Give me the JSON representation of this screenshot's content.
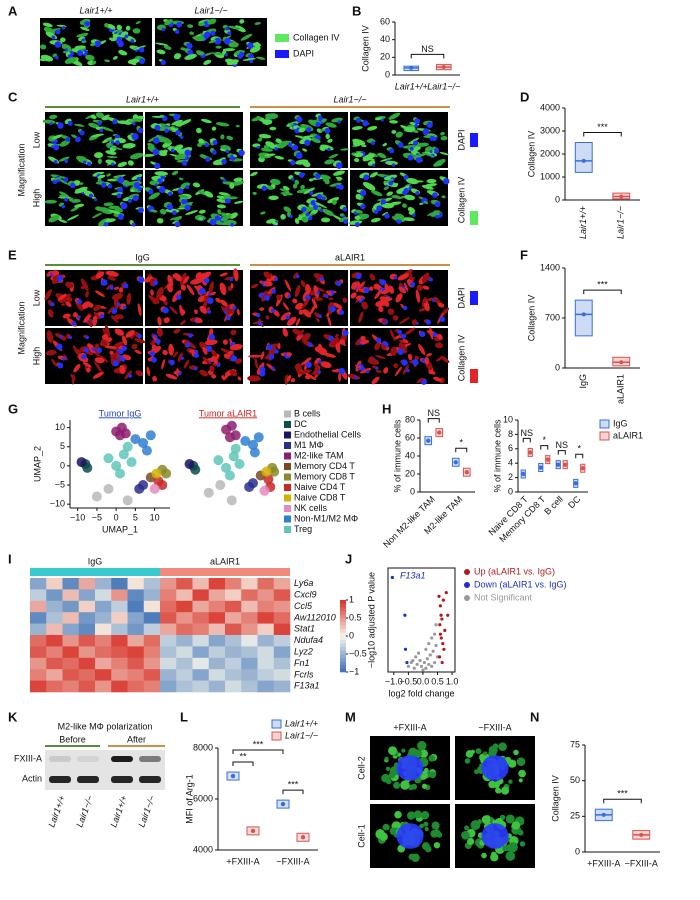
{
  "panel_labels": [
    "A",
    "B",
    "C",
    "D",
    "E",
    "F",
    "G",
    "H",
    "I",
    "J",
    "K",
    "L",
    "M",
    "N"
  ],
  "A": {
    "images": [
      "Lair1+/+",
      "Lair1−/−"
    ],
    "legend": [
      {
        "label": "Collagen IV",
        "color": "#5fe85f"
      },
      {
        "label": "DAPI",
        "color": "#1a1aff"
      }
    ]
  },
  "C": {
    "groups": [
      "Lair1+/+",
      "Lair1−/−"
    ],
    "rows": [
      "Low",
      "High"
    ],
    "axis": "Magnification",
    "legend": [
      {
        "label": "DAPI",
        "color": "#1a1aff"
      },
      {
        "label": "Collagen IV",
        "color": "#5fe85f"
      }
    ]
  },
  "E": {
    "groups": [
      "IgG",
      "aLAIR1"
    ],
    "rows": [
      "Low",
      "High"
    ],
    "axis": "Magnification",
    "legend": [
      {
        "label": "DAPI",
        "color": "#1a1aff"
      },
      {
        "label": "Collagen IV",
        "color": "#e0242a"
      }
    ]
  },
  "K": {
    "title": "M2-like MΦ polarization",
    "stages": [
      "Before",
      "After"
    ],
    "proteins": [
      "FXIII-A",
      "Actin"
    ],
    "lanes": [
      "Lair1+/+",
      "Lair1−/−",
      "Lair1+/+",
      "Lair1−/−"
    ]
  },
  "M": {
    "columns": [
      "+FXIII-A",
      "−FXIII-A"
    ],
    "rows": [
      "Cell-2",
      "Cell-1"
    ]
  },
  "chart_data": [
    {
      "type": "box",
      "ylabel": "Collagen IV",
      "categories": [
        "Lair1+/+",
        "Lair1−/−"
      ],
      "values": [
        8,
        9
      ],
      "q1": [
        5,
        6
      ],
      "q3": [
        10,
        12
      ],
      "colors": [
        "#3a6fd8",
        "#d9534f"
      ],
      "ylim": [
        0,
        60
      ],
      "yticks": [
        0,
        20,
        40,
        60
      ],
      "annotation": "NS"
    },
    {
      "type": "box",
      "ylabel": "Collagen IV",
      "categories": [
        "Lair1+/+",
        "Lair1−/−"
      ],
      "values": [
        1700,
        150
      ],
      "q1": [
        1200,
        50
      ],
      "q3": [
        2500,
        300
      ],
      "colors": [
        "#3a6fd8",
        "#d9534f"
      ],
      "ylim": [
        0,
        4000
      ],
      "yticks": [
        0,
        1000,
        2000,
        3000,
        4000
      ],
      "annotation": "***"
    },
    {
      "type": "box",
      "ylabel": "Collagen IV",
      "categories": [
        "IgG",
        "aLAIR1"
      ],
      "values": [
        750,
        80
      ],
      "q1": [
        450,
        30
      ],
      "q3": [
        950,
        150
      ],
      "colors": [
        "#3a6fd8",
        "#d9534f"
      ],
      "ylim": [
        0,
        1400
      ],
      "yticks": [
        0,
        700,
        1400
      ],
      "annotation": "***"
    },
    {
      "type": "umap",
      "xlabel": "UMAP_1",
      "ylabel": "UMAP_2",
      "xlim": [
        -12,
        14
      ],
      "ylim": [
        -11,
        12
      ],
      "xticks": [
        {
          "value": -10,
          "label": "−10"
        },
        {
          "value": -5,
          "label": "−5"
        },
        0,
        5,
        10
      ],
      "yticks": [
        {
          "value": -10,
          "label": "−10"
        },
        {
          "value": -5,
          "label": "−5"
        },
        0,
        5,
        10
      ],
      "names": [
        "B cells",
        "DC",
        "Endothelial Cells",
        "M1 MΦ",
        "M2-like TAM",
        "Memory CD4 T",
        "Memory CD8 T",
        "Naive CD4 T",
        "Naive CD8 T",
        "NK cells",
        "Non-M1/M2 MΦ",
        "Treg"
      ],
      "colors": [
        "#b8b8b8",
        "#0e4d4d",
        "#1b1464",
        "#2a2f8c",
        "#8e1f6e",
        "#7a4a1c",
        "#8a8a2a",
        "#c62828",
        "#d4b000",
        "#e58ac0",
        "#2f7fd1",
        "#5fc7b8"
      ],
      "panels": [
        {
          "title": "Tumor IgG",
          "color": "#2040d0",
          "series": [
            {
              "x": [
                -5,
                3,
                -2
              ],
              "y": [
                -8,
                -9,
                -6
              ]
            },
            {
              "x": [
                -8,
                -7.5
              ],
              "y": [
                0.5,
                -0.5
              ]
            },
            {
              "x": [
                -9
              ],
              "y": [
                1
              ]
            },
            {
              "x": [
                6,
                7
              ],
              "y": [
                -6,
                -5
              ]
            },
            {
              "x": [
                0,
                1.5,
                2.5,
                1
              ],
              "y": [
                9,
                10,
                8.5,
                8
              ]
            },
            {
              "x": [
                9
              ],
              "y": [
                -3
              ]
            },
            {
              "x": [
                12,
                13
              ],
              "y": [
                -1,
                -2
              ]
            },
            {
              "x": [
                11,
                12
              ],
              "y": [
                -4,
                -5
              ]
            },
            {
              "x": [
                10.5
              ],
              "y": [
                -2
              ]
            },
            {
              "x": [
                10
              ],
              "y": [
                -6
              ]
            },
            {
              "x": [
                5,
                7,
                9,
                8
              ],
              "y": [
                7,
                6,
                8,
                4
              ]
            },
            {
              "x": [
                -2,
                0,
                2,
                4,
                1,
                3
              ],
              "y": [
                2,
                0,
                3,
                1,
                -2,
                5
              ]
            }
          ]
        },
        {
          "title": "Tumor aLAIR1",
          "color": "#d02020",
          "series": [
            {
              "x": [
                -4,
                2,
                -1
              ],
              "y": [
                -7,
                -9,
                -5
              ]
            },
            {
              "x": [
                -8,
                -7.5
              ],
              "y": [
                0,
                -1
              ]
            },
            {
              "x": [
                -9
              ],
              "y": [
                0.5
              ]
            },
            {
              "x": [
                6.5,
                7.5
              ],
              "y": [
                -5.5,
                -4.5
              ]
            },
            {
              "x": [
                0.5,
                2,
                3,
                1.5
              ],
              "y": [
                9.5,
                10.5,
                8,
                7.5
              ]
            },
            {
              "x": [
                9.5
              ],
              "y": [
                -2.5
              ]
            },
            {
              "x": [
                12.5,
                13
              ],
              "y": [
                -0.5,
                -1.5
              ]
            },
            {
              "x": [
                11.5,
                12
              ],
              "y": [
                -3.5,
                -5.5
              ]
            },
            {
              "x": [
                11
              ],
              "y": [
                -1.5
              ]
            },
            {
              "x": [
                10.5
              ],
              "y": [
                -6.5
              ]
            },
            {
              "x": [
                5.5,
                7.5,
                9,
                8
              ],
              "y": [
                6.5,
                5.5,
                7.5,
                3.5
              ]
            },
            {
              "x": [
                -1.5,
                0.5,
                2.5,
                4,
                1.5,
                3
              ],
              "y": [
                1.5,
                -0.5,
                2.5,
                0.5,
                -2.5,
                4.5
              ]
            }
          ]
        }
      ]
    },
    {
      "type": "dot",
      "ylabel": "% of immune cells",
      "series": [
        {
          "name": "IgG",
          "color": "#3a6fd8"
        },
        {
          "name": "aLAIR1",
          "color": "#d9534f"
        }
      ],
      "panels": [
        {
          "categories": [
            "Non M2-like TAM",
            "M2-like TAM"
          ],
          "ylim": [
            0,
            80
          ],
          "yticks": [
            0,
            20,
            40,
            60,
            80
          ],
          "values": [
            [
              57,
              33
            ],
            [
              66,
              22
            ]
          ],
          "annotations": [
            "NS",
            "*"
          ]
        },
        {
          "categories": [
            "Naive CD8 T",
            "Memory CD8 T",
            "B cell",
            "DC"
          ],
          "ylim": [
            0,
            10
          ],
          "yticks": [
            0,
            2,
            4,
            6,
            8,
            10
          ],
          "values": [
            [
              2.5,
              3.4,
              3.8,
              1.2
            ],
            [
              5.5,
              4.5,
              3.8,
              3.3
            ]
          ],
          "annotations": [
            "NS",
            "*",
            "NS",
            "*"
          ]
        }
      ]
    },
    {
      "type": "heatmap",
      "groups": [
        {
          "name": "IgG",
          "color": "#3cc8d0"
        },
        {
          "name": "aLAIR1",
          "color": "#f08a7a"
        }
      ],
      "rows": [
        "Ly6a",
        "Cxcl9",
        "Ccl5",
        "Aw112010",
        "Stat1",
        "Ndufa4",
        "Lyz2",
        "Fn1",
        "Fcrls",
        "F13a1"
      ],
      "values": [
        [
          -0.6,
          0.2,
          -0.8,
          0.4,
          -0.5,
          -0.9,
          0.1,
          -0.4,
          0.5,
          0.8,
          0.3,
          0.9,
          0.6,
          0.2,
          0.7,
          0.4
        ],
        [
          -0.3,
          -0.7,
          0.3,
          -0.6,
          -0.2,
          0.5,
          -0.8,
          -0.5,
          0.6,
          0.3,
          0.9,
          0.4,
          0.2,
          0.7,
          0.5,
          0.8
        ],
        [
          0.4,
          -0.5,
          -0.7,
          0.2,
          -0.6,
          -0.3,
          -0.9,
          0.1,
          0.7,
          0.9,
          0.4,
          0.6,
          0.8,
          0.3,
          0.6,
          0.5
        ],
        [
          -0.8,
          -0.4,
          0.3,
          -0.7,
          -0.5,
          0.2,
          -0.6,
          -0.9,
          0.8,
          0.5,
          0.7,
          0.9,
          0.4,
          0.6,
          0.9,
          0.7
        ],
        [
          -0.5,
          0.3,
          -0.6,
          -0.8,
          0.1,
          -0.4,
          -0.7,
          -0.3,
          0.4,
          0.7,
          0.6,
          0.3,
          0.8,
          0.5,
          0.2,
          0.9
        ],
        [
          0.7,
          0.9,
          0.5,
          0.8,
          0.6,
          0.9,
          0.4,
          0.7,
          -0.3,
          -0.5,
          -0.2,
          -0.6,
          -0.4,
          -0.1,
          -0.5,
          -0.3
        ],
        [
          0.8,
          0.6,
          0.9,
          0.5,
          0.7,
          0.8,
          0.9,
          0.6,
          -0.4,
          -0.2,
          -0.6,
          -0.3,
          -0.5,
          -0.4,
          -0.2,
          -0.6
        ],
        [
          0.5,
          0.8,
          0.7,
          0.9,
          0.4,
          0.6,
          0.8,
          0.5,
          -0.2,
          -0.4,
          -0.1,
          -0.5,
          -0.3,
          -0.6,
          -0.2,
          -0.4
        ],
        [
          0.6,
          0.4,
          0.8,
          0.7,
          0.9,
          0.5,
          0.6,
          0.8,
          -0.5,
          -0.3,
          -0.6,
          -0.2,
          -0.4,
          -0.5,
          -0.3,
          -0.2
        ],
        [
          0.9,
          0.7,
          0.6,
          0.8,
          0.5,
          0.9,
          0.7,
          0.6,
          -0.6,
          -0.4,
          -0.3,
          -0.5,
          -0.2,
          -0.4,
          -0.6,
          -0.5
        ]
      ],
      "zlim": [
        -1,
        1
      ],
      "zticks": [
        1,
        0.5,
        0,
        {
          "value": -0.5,
          "label": "−0.5"
        },
        {
          "value": -1,
          "label": "−1"
        }
      ]
    },
    {
      "type": "volcano",
      "xlabel": "log2 fold change",
      "ylabel": "−log10 adjusted P value",
      "annotation": "F13a1",
      "xlim": [
        -1.2,
        1.1
      ],
      "ylim": [
        0,
        55
      ],
      "xticks": [
        {
          "value": -1,
          "label": "−1.0"
        },
        {
          "value": -0.5,
          "label": "−0.5"
        },
        {
          "value": 0,
          "label": "0.0"
        },
        0.5,
        {
          "value": 1,
          "label": "1.0"
        }
      ],
      "series": [
        {
          "name": "Up (aLAIR1 vs. IgG)",
          "color": "#b01c1c",
          "x": [
            0.55,
            0.6,
            0.62,
            0.65,
            0.7,
            0.58,
            0.75,
            0.8,
            0.63,
            0.68,
            0.72,
            0.57,
            0.85,
            0.66,
            0.6
          ],
          "y": [
            40,
            35,
            30,
            28,
            38,
            25,
            22,
            42,
            18,
            15,
            12,
            8,
            30,
            5,
            20
          ]
        },
        {
          "name": "Down (aLAIR1 vs. IgG)",
          "color": "#1c2fc8",
          "x": [
            -1.05,
            -0.62,
            -0.6,
            -0.55
          ],
          "y": [
            50,
            30,
            12,
            5
          ]
        },
        {
          "name": "Not Significant",
          "color": "#9a9a9a",
          "x": [
            -0.5,
            -0.4,
            -0.3,
            -0.25,
            -0.2,
            -0.15,
            -0.1,
            -0.05,
            0,
            0.05,
            0.1,
            0.15,
            0.2,
            0.25,
            0.3,
            0.35,
            0.4,
            0.45,
            0.5,
            -0.35,
            0.1,
            0.2,
            0.3,
            0.4,
            0.45
          ],
          "y": [
            3,
            5,
            2,
            8,
            4,
            10,
            6,
            3,
            1,
            5,
            12,
            7,
            15,
            9,
            18,
            11,
            20,
            14,
            8,
            6,
            2,
            4,
            3,
            5,
            25
          ]
        }
      ]
    },
    {
      "type": "dot",
      "ylabel": "MFI of Arg-1",
      "series": [
        {
          "name": "Lair1+/+",
          "color": "#3a6fd8"
        },
        {
          "name": "Lair1−/−",
          "color": "#d9534f"
        }
      ],
      "panels": [
        {
          "categories": [
            "+FXIII-A",
            "−FXIII-A"
          ],
          "ylim": [
            4000,
            8000
          ],
          "yticks": [
            4000,
            6000,
            8000
          ],
          "values": [
            [
              6900,
              5800
            ],
            [
              4750,
              4500
            ]
          ],
          "annotations": [
            "**",
            "***",
            "***"
          ]
        }
      ]
    },
    {
      "type": "box",
      "ylabel": "Collagen IV",
      "categories": [
        "+FXIII-A",
        "−FXIII-A"
      ],
      "values": [
        26,
        12
      ],
      "q1": [
        22,
        9
      ],
      "q3": [
        30,
        15
      ],
      "colors": [
        "#3a6fd8",
        "#d9534f"
      ],
      "ylim": [
        0,
        75
      ],
      "yticks": [
        0,
        25,
        50,
        75
      ],
      "annotation": "***"
    }
  ]
}
